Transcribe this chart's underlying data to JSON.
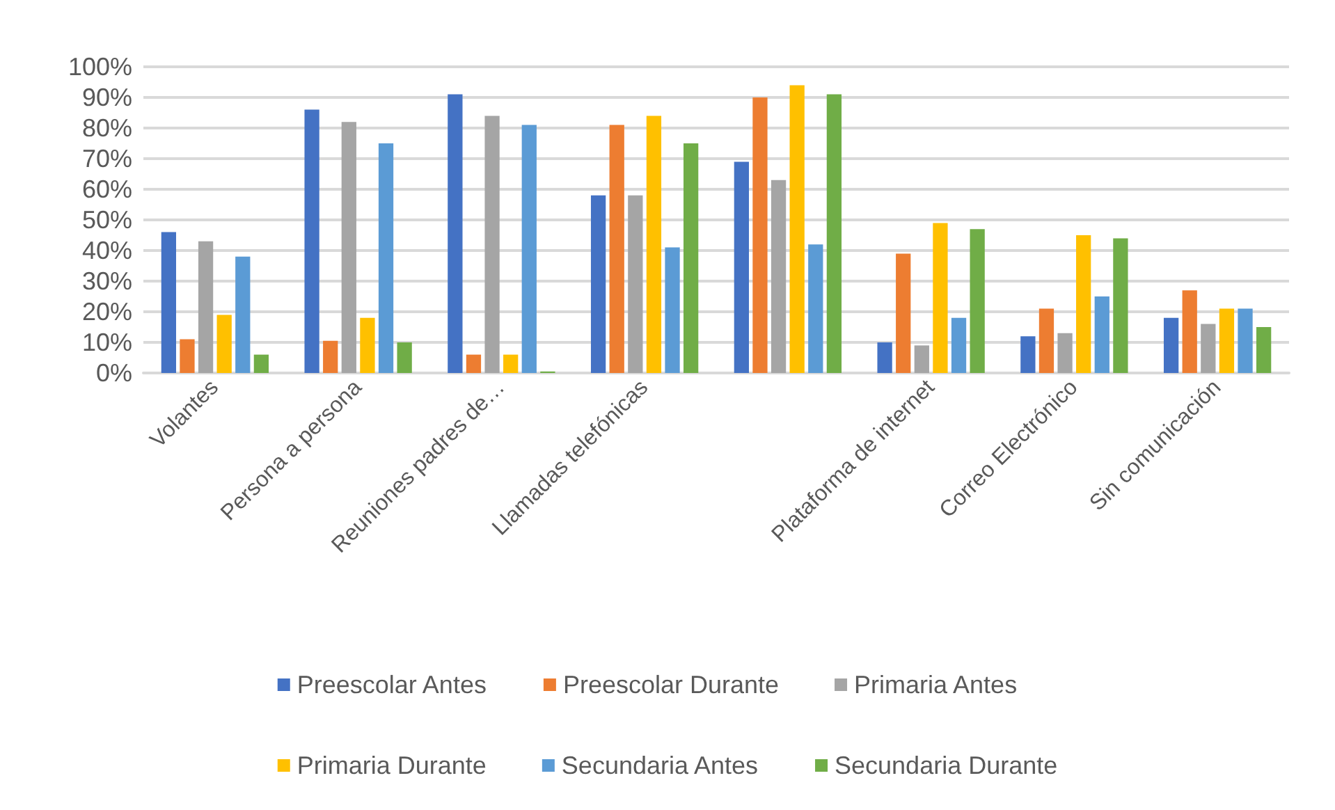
{
  "chart_data": {
    "type": "bar",
    "categories": [
      "Volantes",
      "Persona a persona",
      "Reuniones padres de…",
      "Llamadas telefónicas",
      null,
      "Plataforma de internet",
      "Correo Electrónico",
      "Sin comunicación"
    ],
    "series": [
      {
        "name": "Preescolar Antes",
        "color": "#4472c4",
        "values": [
          46,
          86,
          91,
          58,
          69,
          10,
          12,
          18
        ]
      },
      {
        "name": "Preescolar Durante",
        "color": "#ed7d31",
        "values": [
          11,
          10.5,
          6,
          81,
          90,
          39,
          21,
          27
        ]
      },
      {
        "name": "Primaria Antes",
        "color": "#a5a5a5",
        "values": [
          43,
          82,
          84,
          58,
          63,
          9,
          13,
          16
        ]
      },
      {
        "name": "Primaria Durante",
        "color": "#ffc000",
        "values": [
          19,
          18,
          6,
          84,
          94,
          49,
          45,
          21
        ]
      },
      {
        "name": "Secundaria Antes",
        "color": "#5b9bd5",
        "values": [
          38,
          75,
          81,
          41,
          42,
          18,
          25,
          21
        ]
      },
      {
        "name": "Secundaria Durante",
        "color": "#70ad47",
        "values": [
          6,
          10,
          0.5,
          75,
          91,
          47,
          44,
          15
        ]
      }
    ],
    "ylim": [
      0,
      100
    ],
    "yticks": [
      {
        "value": 0,
        "label": "0%"
      },
      {
        "value": 10,
        "label": "10%"
      },
      {
        "value": 20,
        "label": "20%"
      },
      {
        "value": 30,
        "label": "30%"
      },
      {
        "value": 40,
        "label": "40%"
      },
      {
        "value": 50,
        "label": "50%"
      },
      {
        "value": 60,
        "label": "60%"
      },
      {
        "value": 70,
        "label": "70%"
      },
      {
        "value": 80,
        "label": "80%"
      },
      {
        "value": 90,
        "label": "90%"
      },
      {
        "value": 100,
        "label": "100%"
      }
    ],
    "grid": "y",
    "legend": "bottom"
  }
}
